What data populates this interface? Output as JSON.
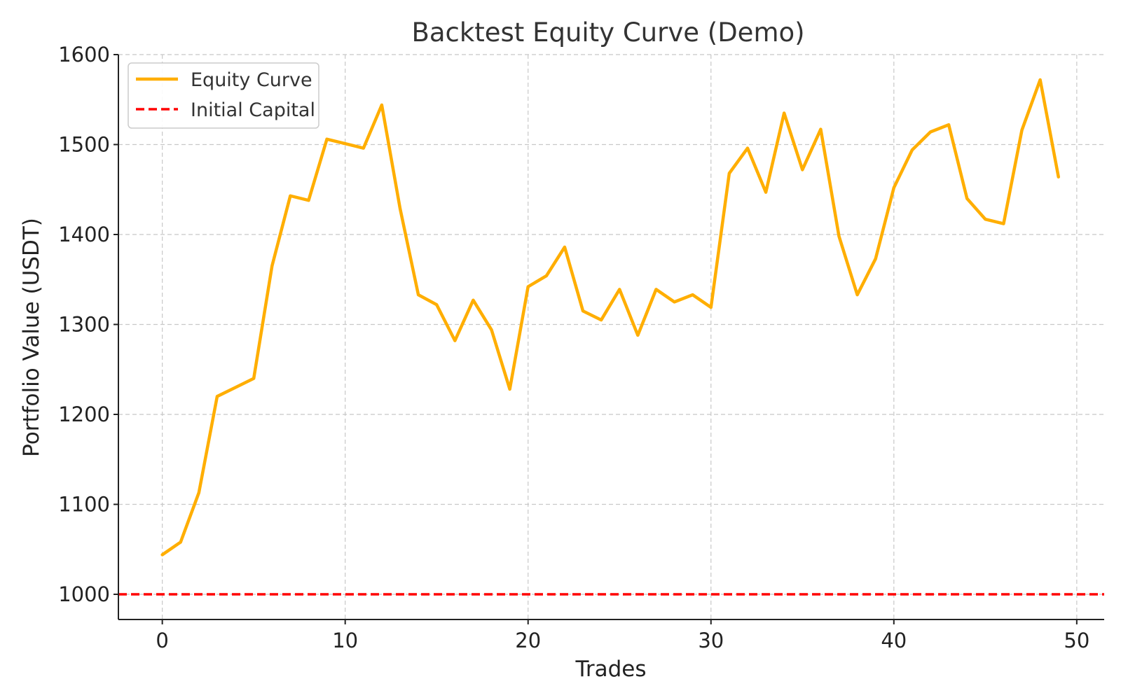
{
  "chart_data": {
    "type": "line",
    "title": "Backtest Equity Curve (Demo)",
    "xlabel": "Trades",
    "ylabel": "Portfolio Value (USDT)",
    "xlim": [
      -2.4,
      51.5
    ],
    "ylim": [
      972,
      1600
    ],
    "xticks": [
      0,
      10,
      20,
      30,
      40,
      50
    ],
    "yticks": [
      1000,
      1100,
      1200,
      1300,
      1400,
      1500,
      1600
    ],
    "grid": true,
    "legend_position": "top-left",
    "series": [
      {
        "name": "Equity Curve",
        "color": "#FFAE00",
        "style": "solid",
        "x": [
          0,
          1,
          2,
          3,
          4,
          5,
          6,
          7,
          8,
          9,
          10,
          11,
          12,
          13,
          14,
          15,
          16,
          17,
          18,
          19,
          20,
          21,
          22,
          23,
          24,
          25,
          26,
          27,
          28,
          29,
          30,
          31,
          32,
          33,
          34,
          35,
          36,
          37,
          38,
          39,
          40,
          41,
          42,
          43,
          44,
          45,
          46,
          47,
          48,
          49
        ],
        "values": [
          1044,
          1058,
          1113,
          1220,
          1230,
          1240,
          1365,
          1443,
          1438,
          1506,
          1501,
          1496,
          1544,
          1429,
          1333,
          1322,
          1282,
          1327,
          1294,
          1228,
          1342,
          1354,
          1386,
          1315,
          1305,
          1339,
          1288,
          1339,
          1325,
          1333,
          1319,
          1468,
          1496,
          1447,
          1535,
          1472,
          1517,
          1398,
          1333,
          1373,
          1452,
          1494,
          1514,
          1522,
          1440,
          1417,
          1412,
          1516,
          1572,
          1464
        ]
      },
      {
        "name": "Initial Capital",
        "color": "#FF0000",
        "style": "dashed",
        "y": 1000
      }
    ]
  }
}
